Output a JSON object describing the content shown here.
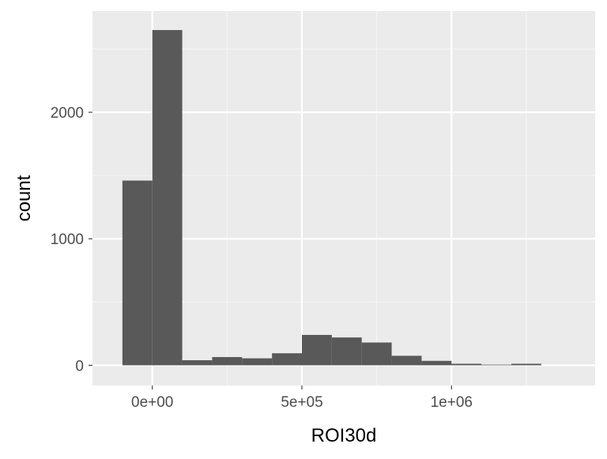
{
  "chart_data": {
    "type": "bar",
    "xlabel": "ROI30d",
    "ylabel": "count",
    "bin_width": 100000,
    "bins": [
      {
        "x0": -100000,
        "x1": 0,
        "count": 1460
      },
      {
        "x0": 0,
        "x1": 100000,
        "count": 2650
      },
      {
        "x0": 100000,
        "x1": 200000,
        "count": 40
      },
      {
        "x0": 200000,
        "x1": 300000,
        "count": 65
      },
      {
        "x0": 300000,
        "x1": 400000,
        "count": 55
      },
      {
        "x0": 400000,
        "x1": 500000,
        "count": 95
      },
      {
        "x0": 500000,
        "x1": 600000,
        "count": 240
      },
      {
        "x0": 600000,
        "x1": 700000,
        "count": 220
      },
      {
        "x0": 700000,
        "x1": 800000,
        "count": 180
      },
      {
        "x0": 800000,
        "x1": 900000,
        "count": 75
      },
      {
        "x0": 900000,
        "x1": 1000000,
        "count": 35
      },
      {
        "x0": 1000000,
        "x1": 1100000,
        "count": 12
      },
      {
        "x0": 1100000,
        "x1": 1200000,
        "count": 5
      },
      {
        "x0": 1200000,
        "x1": 1300000,
        "count": 12
      }
    ],
    "xlim": [
      -200000,
      1480000
    ],
    "ylim": [
      -160,
      2800
    ],
    "x_major_ticks": [
      0,
      500000,
      1000000
    ],
    "x_tick_labels": [
      "0e+00",
      "5e+05",
      "1e+06"
    ],
    "x_minor_gridlines": [
      -250000,
      250000,
      750000,
      1250000
    ],
    "y_major_ticks": [
      0,
      1000,
      2000
    ],
    "y_tick_labels": [
      "0",
      "1000",
      "2000"
    ],
    "y_minor_gridlines": [
      500,
      1500,
      2500
    ],
    "grid": true,
    "legend": "none"
  },
  "colors": {
    "panel_background": "#EBEBEB",
    "grid_major": "#FFFFFF",
    "grid_minor": "#F5F5F5",
    "bar_fill": "#595959",
    "axis_text": "#4D4D4D",
    "axis_title": "#000000",
    "tick_mark": "#333333"
  }
}
